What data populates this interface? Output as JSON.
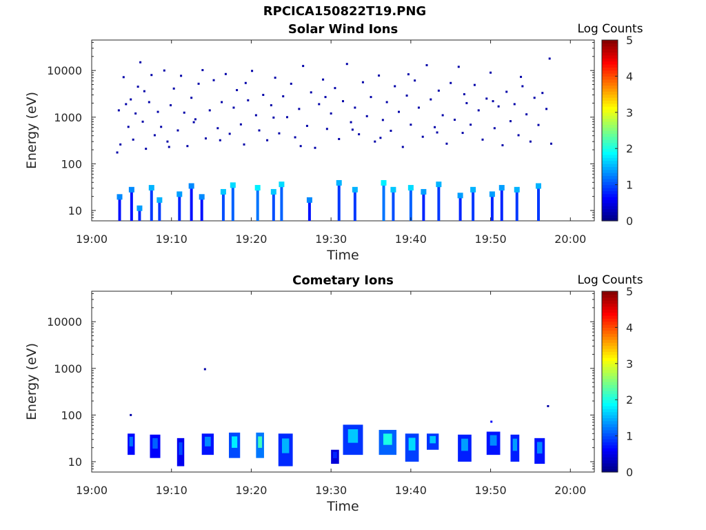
{
  "figure": {
    "title": "RPCICA150822T19.PNG"
  },
  "chart_data": [
    {
      "type": "heatmap",
      "title": "Solar Wind Ions",
      "xlabel": "Time",
      "ylabel": "Energy (eV)",
      "xticks": [
        "19:00",
        "19:10",
        "19:20",
        "19:30",
        "19:40",
        "19:50",
        "20:00"
      ],
      "yticks": [
        "10",
        "100",
        "1000",
        "10000"
      ],
      "yscale": "log",
      "ylim": [
        6,
        45000
      ],
      "xlim_minutes": [
        0,
        63
      ],
      "colorbar": {
        "label": "Log Counts",
        "ticks": [
          "0",
          "1",
          "2",
          "3",
          "4",
          "5"
        ],
        "range": [
          0,
          5
        ],
        "colormap": "jet"
      },
      "points": [
        [
          3.2,
          175,
          0.2
        ],
        [
          3.6,
          260,
          0.2
        ],
        [
          4.0,
          7200,
          0.2
        ],
        [
          4.3,
          1900,
          0.2
        ],
        [
          4.6,
          620,
          0.2
        ],
        [
          4.9,
          2400,
          0.2
        ],
        [
          5.2,
          330,
          0.2
        ],
        [
          5.5,
          1200,
          0.2
        ],
        [
          5.8,
          4500,
          0.2
        ],
        [
          6.1,
          15000,
          0.2
        ],
        [
          6.4,
          800,
          0.2
        ],
        [
          6.8,
          210,
          0.2
        ],
        [
          7.2,
          2100,
          0.2
        ],
        [
          7.5,
          8000,
          0.2
        ],
        [
          7.9,
          410,
          0.2
        ],
        [
          8.3,
          1300,
          0.2
        ],
        [
          8.7,
          620,
          0.2
        ],
        [
          9.1,
          10000,
          0.2
        ],
        [
          9.5,
          300,
          0.2
        ],
        [
          9.9,
          1800,
          0.2
        ],
        [
          10.3,
          4100,
          0.2
        ],
        [
          10.8,
          520,
          0.2
        ],
        [
          11.2,
          7700,
          0.2
        ],
        [
          11.6,
          1250,
          0.2
        ],
        [
          12.0,
          240,
          0.2
        ],
        [
          12.5,
          2600,
          0.2
        ],
        [
          13.0,
          900,
          0.2
        ],
        [
          13.4,
          5200,
          0.2
        ],
        [
          13.9,
          10200,
          0.2
        ],
        [
          14.3,
          350,
          0.2
        ],
        [
          14.8,
          1400,
          0.2
        ],
        [
          15.3,
          6200,
          0.2
        ],
        [
          15.8,
          580,
          0.2
        ],
        [
          16.3,
          2100,
          0.2
        ],
        [
          16.8,
          8400,
          0.2
        ],
        [
          17.3,
          440,
          0.2
        ],
        [
          17.8,
          1600,
          0.2
        ],
        [
          18.2,
          3800,
          0.2
        ],
        [
          18.7,
          700,
          0.2
        ],
        [
          19.1,
          260,
          0.2
        ],
        [
          19.6,
          2300,
          0.2
        ],
        [
          20.1,
          9800,
          0.2
        ],
        [
          20.6,
          1100,
          0.2
        ],
        [
          21.0,
          520,
          0.2
        ],
        [
          21.5,
          3000,
          0.2
        ],
        [
          22.0,
          320,
          0.2
        ],
        [
          22.5,
          1800,
          0.2
        ],
        [
          23.0,
          7000,
          0.2
        ],
        [
          23.5,
          450,
          0.2
        ],
        [
          24.0,
          2800,
          0.2
        ],
        [
          24.5,
          1000,
          0.2
        ],
        [
          25.0,
          5200,
          0.2
        ],
        [
          25.5,
          370,
          0.2
        ],
        [
          26.0,
          1500,
          0.2
        ],
        [
          26.5,
          12500,
          0.2
        ],
        [
          27.0,
          650,
          0.2
        ],
        [
          27.5,
          3400,
          0.2
        ],
        [
          28.0,
          220,
          0.2
        ],
        [
          28.5,
          1900,
          0.2
        ],
        [
          29.0,
          6400,
          0.2
        ],
        [
          29.5,
          560,
          0.2
        ],
        [
          30.0,
          1200,
          0.2
        ],
        [
          30.5,
          4200,
          0.2
        ],
        [
          31.0,
          340,
          0.2
        ],
        [
          31.5,
          2200,
          0.2
        ],
        [
          32.0,
          13800,
          0.2
        ],
        [
          32.5,
          780,
          0.2
        ],
        [
          33.0,
          1600,
          0.2
        ],
        [
          33.5,
          430,
          0.2
        ],
        [
          34.0,
          5600,
          0.2
        ],
        [
          34.5,
          1050,
          0.2
        ],
        [
          35.0,
          2700,
          0.2
        ],
        [
          35.5,
          300,
          0.2
        ],
        [
          36.0,
          7800,
          0.2
        ],
        [
          36.5,
          870,
          0.2
        ],
        [
          37.0,
          2100,
          0.2
        ],
        [
          37.5,
          510,
          0.2
        ],
        [
          38.0,
          4600,
          0.2
        ],
        [
          38.5,
          1300,
          0.2
        ],
        [
          39.0,
          230,
          0.2
        ],
        [
          39.5,
          2900,
          0.2
        ],
        [
          40.0,
          690,
          0.2
        ],
        [
          40.5,
          6100,
          0.2
        ],
        [
          41.0,
          1600,
          0.2
        ],
        [
          41.5,
          380,
          0.2
        ],
        [
          42.0,
          13000,
          0.2
        ],
        [
          42.5,
          2400,
          0.2
        ],
        [
          43.0,
          610,
          0.2
        ],
        [
          43.5,
          3700,
          0.2
        ],
        [
          44.0,
          1100,
          0.2
        ],
        [
          44.5,
          270,
          0.2
        ],
        [
          45.0,
          5400,
          0.2
        ],
        [
          45.5,
          880,
          0.2
        ],
        [
          46.0,
          12000,
          0.2
        ],
        [
          46.5,
          460,
          0.2
        ],
        [
          47.0,
          2000,
          0.2
        ],
        [
          47.5,
          690,
          0.2
        ],
        [
          48.0,
          4900,
          0.2
        ],
        [
          48.5,
          1400,
          0.2
        ],
        [
          49.0,
          330,
          0.2
        ],
        [
          49.5,
          2500,
          0.2
        ],
        [
          50.0,
          9000,
          0.2
        ],
        [
          50.5,
          580,
          0.2
        ],
        [
          51.0,
          1700,
          0.2
        ],
        [
          51.5,
          250,
          0.2
        ],
        [
          52.0,
          3500,
          0.2
        ],
        [
          52.5,
          820,
          0.2
        ],
        [
          53.0,
          1900,
          0.2
        ],
        [
          53.5,
          410,
          0.2
        ],
        [
          54.0,
          4600,
          0.2
        ],
        [
          54.5,
          1150,
          0.2
        ],
        [
          55.0,
          300,
          0.2
        ],
        [
          55.5,
          2600,
          0.2
        ],
        [
          56.0,
          680,
          0.2
        ],
        [
          56.5,
          3300,
          0.2
        ],
        [
          57.0,
          1500,
          0.2
        ],
        [
          57.4,
          18000,
          0.2
        ],
        [
          57.6,
          270,
          0.2
        ],
        [
          3.4,
          1400,
          0.2
        ],
        [
          6.6,
          3600,
          0.2
        ],
        [
          9.7,
          230,
          0.2
        ],
        [
          12.8,
          780,
          0.2
        ],
        [
          16.1,
          320,
          0.2
        ],
        [
          19.3,
          5400,
          0.2
        ],
        [
          22.8,
          980,
          0.2
        ],
        [
          26.2,
          240,
          0.2
        ],
        [
          29.3,
          2700,
          0.2
        ],
        [
          32.7,
          540,
          0.2
        ],
        [
          36.2,
          360,
          0.2
        ],
        [
          39.7,
          8300,
          0.2
        ],
        [
          43.3,
          470,
          0.2
        ],
        [
          46.7,
          3100,
          0.2
        ],
        [
          50.3,
          2200,
          0.2
        ],
        [
          53.8,
          7300,
          0.2
        ]
      ],
      "low_energy_columns": [
        [
          3.5,
          14,
          1.3
        ],
        [
          5.0,
          20,
          1.3
        ],
        [
          6.0,
          8,
          1.4
        ],
        [
          7.5,
          22,
          1.5
        ],
        [
          8.5,
          12,
          1.5
        ],
        [
          11.0,
          16,
          1.4
        ],
        [
          12.5,
          24,
          1.3
        ],
        [
          13.8,
          14,
          1.3
        ],
        [
          16.5,
          18,
          1.6
        ],
        [
          17.7,
          25,
          1.7
        ],
        [
          20.8,
          22,
          1.8
        ],
        [
          22.8,
          18,
          1.6
        ],
        [
          23.8,
          26,
          1.7
        ],
        [
          27.3,
          12,
          1.3
        ],
        [
          31.0,
          28,
          1.5
        ],
        [
          33.0,
          20,
          1.5
        ],
        [
          36.6,
          28,
          1.8
        ],
        [
          37.8,
          20,
          1.6
        ],
        [
          40.0,
          22,
          1.7
        ],
        [
          41.6,
          18,
          1.4
        ],
        [
          43.5,
          26,
          1.5
        ],
        [
          46.2,
          15,
          1.4
        ],
        [
          47.8,
          20,
          1.5
        ],
        [
          50.2,
          16,
          1.4
        ],
        [
          51.4,
          22,
          1.4
        ],
        [
          53.3,
          20,
          1.5
        ],
        [
          56.0,
          24,
          1.5
        ]
      ]
    },
    {
      "type": "heatmap",
      "title": "Cometary Ions",
      "xlabel": "Time",
      "ylabel": "Energy (eV)",
      "xticks": [
        "19:00",
        "19:10",
        "19:20",
        "19:30",
        "19:40",
        "19:50",
        "20:00"
      ],
      "yticks": [
        "10",
        "100",
        "1000",
        "10000"
      ],
      "yscale": "log",
      "ylim": [
        6,
        45000
      ],
      "xlim_minutes": [
        0,
        63
      ],
      "colorbar": {
        "label": "Log Counts",
        "ticks": [
          "0",
          "1",
          "2",
          "3",
          "4",
          "5"
        ],
        "range": [
          0,
          5
        ],
        "colormap": "jet"
      },
      "points": [
        [
          4.9,
          100,
          0.2
        ],
        [
          14.2,
          960,
          0.2
        ],
        [
          57.2,
          155,
          0.2
        ],
        [
          50.1,
          72,
          0.6
        ]
      ],
      "clusters": [
        [
          4.5,
          5.4,
          14,
          40,
          1.2
        ],
        [
          7.3,
          8.6,
          12,
          38,
          1.1
        ],
        [
          10.7,
          11.6,
          8,
          32,
          1.0
        ],
        [
          13.8,
          15.3,
          14,
          40,
          1.3
        ],
        [
          17.2,
          18.6,
          12,
          42,
          1.8
        ],
        [
          20.6,
          21.6,
          12,
          42,
          2.2
        ],
        [
          23.4,
          25.2,
          8,
          40,
          1.5
        ],
        [
          30.0,
          31.0,
          9,
          18,
          0.8
        ],
        [
          31.5,
          34.0,
          14,
          62,
          1.6
        ],
        [
          36.0,
          38.2,
          14,
          48,
          2.0
        ],
        [
          39.3,
          41.0,
          10,
          40,
          1.7
        ],
        [
          42.0,
          43.5,
          18,
          40,
          1.6
        ],
        [
          45.9,
          47.6,
          10,
          38,
          1.4
        ],
        [
          49.5,
          51.2,
          14,
          44,
          1.3
        ],
        [
          52.5,
          53.6,
          10,
          38,
          1.4
        ],
        [
          55.5,
          56.8,
          9,
          32,
          1.3
        ]
      ]
    }
  ]
}
